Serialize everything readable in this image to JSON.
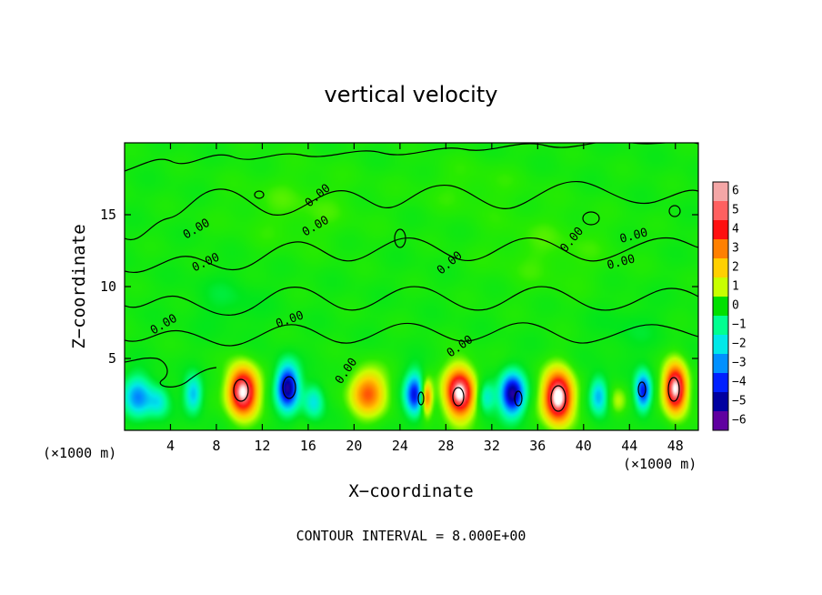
{
  "chart_data": {
    "type": "heatmap",
    "title": "vertical velocity",
    "xlabel": "X−coordinate",
    "ylabel": "Z−coordinate",
    "x_unit_left": "(×1000 m)",
    "x_unit_right": "(×1000 m)",
    "xlim": [
      0,
      50
    ],
    "ylim": [
      0,
      20
    ],
    "x_ticks": [
      "4",
      "8",
      "12",
      "16",
      "20",
      "24",
      "28",
      "32",
      "36",
      "40",
      "44",
      "48"
    ],
    "x_tick_values": [
      4,
      8,
      12,
      16,
      20,
      24,
      28,
      32,
      36,
      40,
      44,
      48
    ],
    "y_ticks": [
      "5",
      "10",
      "15"
    ],
    "y_tick_values": [
      5,
      10,
      15
    ],
    "colorbar_ticks": [
      "6",
      "5",
      "4",
      "3",
      "2",
      "1",
      "0",
      "−1",
      "−2",
      "−3",
      "−4",
      "−5",
      "−6"
    ],
    "colorbar_values": [
      6,
      5,
      4,
      3,
      2,
      1,
      0,
      -1,
      -2,
      -3,
      -4,
      -5,
      -6
    ],
    "colorbar_colors": [
      "#f4a6a6",
      "#ff6060",
      "#ff1010",
      "#ff8000",
      "#ffd000",
      "#c8ff00",
      "#00e000",
      "#00ff90",
      "#00e8e8",
      "#0090ff",
      "#0020ff",
      "#0000a0",
      "#6000a0"
    ],
    "contour_labels": [
      "0.00",
      "0.00",
      "0.00",
      "0.00",
      "0.00",
      "0.00",
      "0.00",
      "0.00",
      "0.00",
      "0.00",
      "0.00",
      "0.00"
    ],
    "cells": [
      {
        "x": 1.2,
        "z": 2.3,
        "sx": 1.3,
        "sz": 1.5,
        "v": -3.5
      },
      {
        "x": 3.0,
        "z": 2.0,
        "sx": 0.9,
        "sz": 1.1,
        "v": -2.0
      },
      {
        "x": 6.0,
        "z": 2.5,
        "sx": 0.8,
        "sz": 1.3,
        "v": -3.0
      },
      {
        "x": 10.3,
        "z": 2.7,
        "sx": 1.3,
        "sz": 1.7,
        "v": 6.5
      },
      {
        "x": 14.2,
        "z": 3.0,
        "sx": 1.0,
        "sz": 1.6,
        "v": -5.8
      },
      {
        "x": 16.5,
        "z": 2.0,
        "sx": 0.9,
        "sz": 1.2,
        "v": -2.5
      },
      {
        "x": 21.2,
        "z": 2.6,
        "sx": 1.6,
        "sz": 1.6,
        "v": 3.8
      },
      {
        "x": 25.3,
        "z": 2.5,
        "sx": 0.9,
        "sz": 1.5,
        "v": -4.8
      },
      {
        "x": 26.3,
        "z": 2.3,
        "sx": 0.5,
        "sz": 1.2,
        "v": 4.5
      },
      {
        "x": 29.2,
        "z": 2.6,
        "sx": 1.3,
        "sz": 1.8,
        "v": 6.5
      },
      {
        "x": 33.8,
        "z": 2.5,
        "sx": 1.1,
        "sz": 1.5,
        "v": -5.8
      },
      {
        "x": 31.5,
        "z": 2.3,
        "sx": 0.8,
        "sz": 1.1,
        "v": -2.5
      },
      {
        "x": 37.8,
        "z": 2.3,
        "sx": 1.3,
        "sz": 1.8,
        "v": 6.8
      },
      {
        "x": 41.3,
        "z": 2.4,
        "sx": 0.8,
        "sz": 1.3,
        "v": -3.2
      },
      {
        "x": 45.2,
        "z": 2.7,
        "sx": 0.7,
        "sz": 1.3,
        "v": -4.8
      },
      {
        "x": 48.0,
        "z": 2.9,
        "sx": 1.0,
        "sz": 1.7,
        "v": 6.5
      },
      {
        "x": 43.0,
        "z": 2.0,
        "sx": 0.8,
        "sz": 1.0,
        "v": 1.5
      },
      {
        "x": 15.0,
        "z": 15.5,
        "sx": 6.0,
        "sz": 3.0,
        "v": 0.6
      },
      {
        "x": 37.0,
        "z": 12.5,
        "sx": 6.0,
        "sz": 3.0,
        "v": 0.6
      },
      {
        "x": 9.0,
        "z": 9.0,
        "sx": 3.0,
        "sz": 2.0,
        "v": -0.6
      },
      {
        "x": 30.0,
        "z": 17.0,
        "sx": 5.0,
        "sz": 2.0,
        "v": 0.5
      },
      {
        "x": 44.0,
        "z": 7.0,
        "sx": 3.0,
        "sz": 2.0,
        "v": -0.5
      }
    ],
    "legend_position": "right",
    "grid": false,
    "footnote": "CONTOUR INTERVAL = 8.000E+00"
  }
}
